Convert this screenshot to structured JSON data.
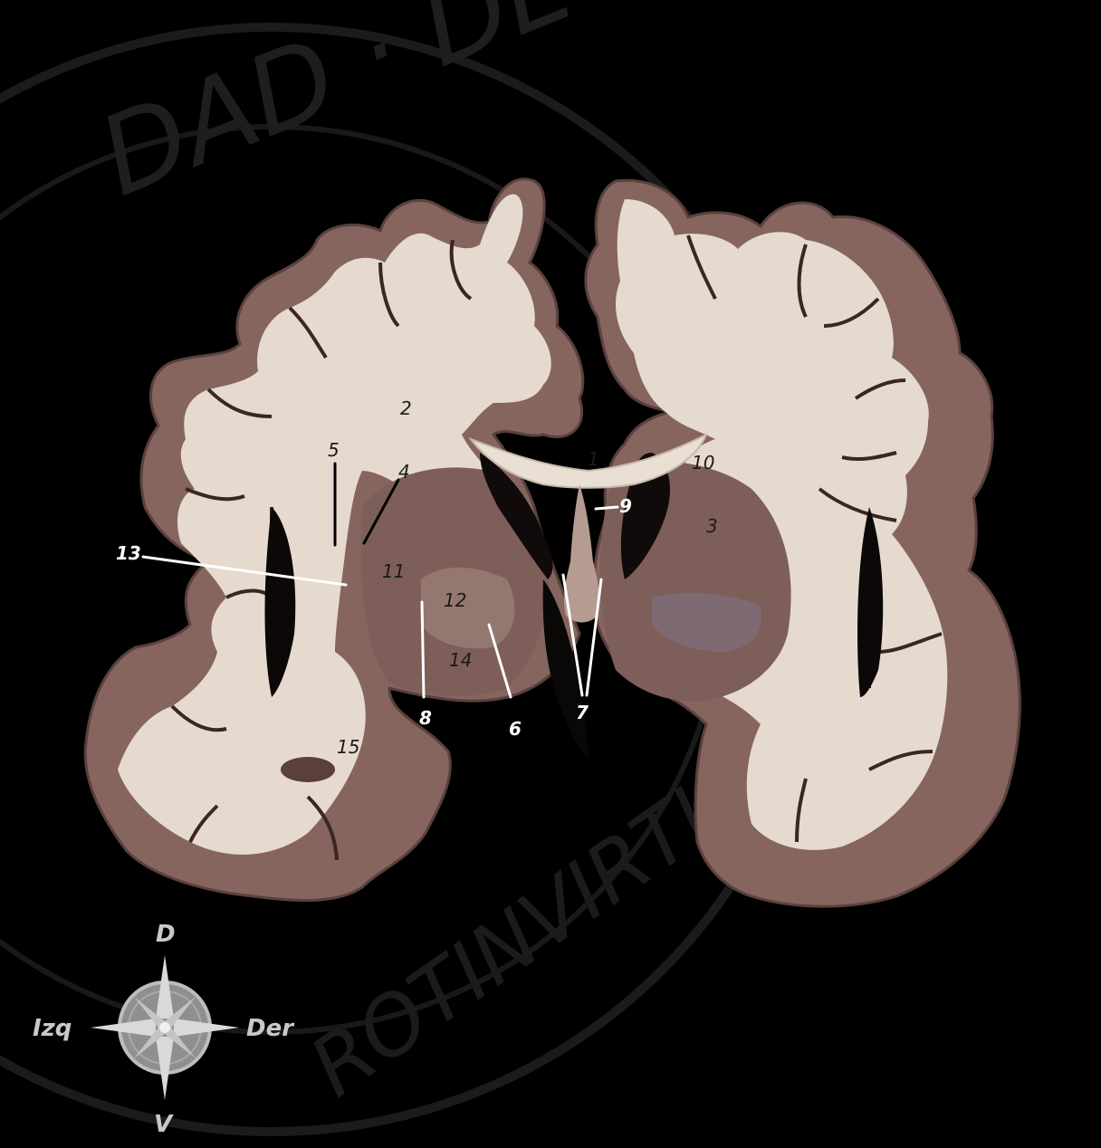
{
  "colors": {
    "background": "#000000",
    "grey_matter": "#8a6a66",
    "grey_matter_dark": "#6e524f",
    "white_matter": "#e8ddd0",
    "label_dark": "#1a1a1a",
    "label_light": "#ffffff",
    "watermark": "#2a2a2a",
    "compass": "#b9b9b9"
  },
  "watermark": {
    "seal_text": "DAD · DE ·",
    "seal_text_bottom": "ROTINVIRTUTE"
  },
  "labels": {
    "l1": "1",
    "l2": "2",
    "l3": "3",
    "l4": "4",
    "l5": "5",
    "l6": "6",
    "l7": "7",
    "l8": "8",
    "l9": "9",
    "l10": "10",
    "l11": "11",
    "l12": "12",
    "l13": "13",
    "l14": "14",
    "l15": "15"
  },
  "compass": {
    "north": "D",
    "south": "V",
    "west": "Izq",
    "east": "Der"
  }
}
